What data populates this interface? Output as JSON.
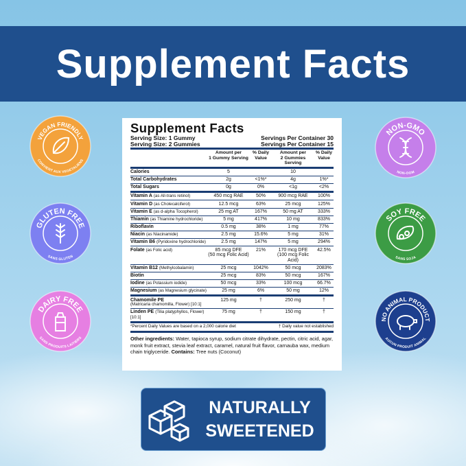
{
  "banner": {
    "title": "Supplement Facts"
  },
  "label": {
    "title": "Supplement Facts",
    "serving_sizes": [
      "Serving Size: 1 Gummy",
      "Serving Size: 2 Gummies"
    ],
    "servings_per_container": [
      "Servings Per Container 30",
      "Servings Per Container 15"
    ],
    "headers": [
      [
        "Amount per",
        "1 Gummy Serving"
      ],
      [
        "% Daily",
        "Value"
      ],
      [
        "Amount per",
        "2 Gummies Serving"
      ],
      [
        "% Daily",
        "Value"
      ]
    ],
    "sections": [
      [
        {
          "name": "Calories",
          "amt1": "5",
          "amt2": "10"
        },
        {
          "name": "Total Carbohydrates",
          "amt1": "2g",
          "dv1": "<1%*",
          "amt2": "4g",
          "dv2": "1%*"
        },
        {
          "name": "Total Sugars",
          "amt1": "0g",
          "dv1": "0%",
          "amt2": "<1g",
          "dv2": "<2%"
        }
      ],
      [
        {
          "name": "Vitamin A",
          "note": "(as All-trans retinol)",
          "amt1": "450 mcg RAE",
          "dv1": "50%",
          "amt2": "900 mcg RAE",
          "dv2": "100%"
        },
        {
          "name": "Vitamin D",
          "note": "(as Cholecalciferol)",
          "amt1": "12.5 mcg",
          "dv1": "63%",
          "amt2": "25 mcg",
          "dv2": "125%"
        },
        {
          "name": "Vitamin E",
          "note": "(as d-alpha Tocopherol)",
          "amt1": "25 mg AT",
          "dv1": "167%",
          "amt2": "50 mg AT",
          "dv2": "333%"
        },
        {
          "name": "Thiamin",
          "note": "(as Thiamine hydrochloride)",
          "amt1": "5 mg",
          "dv1": "417%",
          "amt2": "10 mg",
          "dv2": "833%"
        },
        {
          "name": "Riboflavin",
          "amt1": "0.5 mg",
          "dv1": "38%",
          "amt2": "1 mg",
          "dv2": "77%"
        },
        {
          "name": "Niacin",
          "note": "(as Niacinamide)",
          "amt1": "2.5 mg",
          "dv1": "15.6%",
          "amt2": "5 mg",
          "dv2": "31%"
        },
        {
          "name": "Vitamin B6",
          "note": "(Pyridoxine hydrochloride)",
          "amt1": "2.5 mg",
          "dv1": "147%",
          "amt2": "5 mg",
          "dv2": "294%"
        },
        {
          "name": "Folate",
          "note": "(as Folic acid)",
          "amt1": "85 mcg DFE",
          "amt1_sub": "(50 mcg Folic Acid)",
          "dv1": "21%",
          "amt2": "170 mcg DFE",
          "amt2_sub": "(100 mcg Folic Acid)",
          "dv2": "42.5%"
        },
        {
          "name": "Vitamin B12",
          "note": "(Methylcobalamin)",
          "amt1": "25 mcg",
          "dv1": "1042%",
          "amt2": "50 mcg",
          "dv2": "2083%"
        },
        {
          "name": "Biotin",
          "amt1": "25 mcg",
          "dv1": "83%",
          "amt2": "50 mcg",
          "dv2": "167%"
        },
        {
          "name": "Iodine",
          "note": "(as Potassium iodide)",
          "amt1": "50 mcg",
          "dv1": "33%",
          "amt2": "100 mcg",
          "dv2": "66.7%"
        },
        {
          "name": "Magnesium",
          "note": "(as Magnesium glycinate)",
          "amt1": "25 mg",
          "dv1": "6%",
          "amt2": "50 mg",
          "dv2": "12%"
        }
      ],
      [
        {
          "name": "Chamomile PE",
          "note_line2": "(Matricaria chamomilla, Flower) [10:1]",
          "amt1": "125 mg",
          "dv1": "†",
          "amt2": "250 mg",
          "dv2": "†"
        },
        {
          "name": "Linden PE",
          "note": "(Tilia platyphyllos, Flower) [10:1]",
          "amt1": "75 mg",
          "dv1": "†",
          "amt2": "150 mg",
          "dv2": "†"
        }
      ]
    ],
    "footnotes": [
      "*Percent Daily Values are based on a 2,000 calorie diet",
      "† Daily value not established"
    ],
    "other_ingredients_label": "Other ingredients:",
    "other_ingredients": "Water, tapioca syrup, sodium citrate dihydrate, pectin, citric acid, agar, monk fruit extract, stevia leaf extract, caramel, natural fruit flavor, carnauba wax, medium chain triglyceride.",
    "contains_label": "Contains:",
    "contains": "Tree nuts (Coconut)"
  },
  "badges_left": [
    {
      "name": "VEGAN FRIENDLY",
      "sub": "CONVIENT AUX VEGETALIENS",
      "color": "#f3a23c"
    },
    {
      "name": "GLUTEN FREE",
      "sub": "SANS GLUTEN",
      "color": "#7d80f1"
    },
    {
      "name": "DAIRY FREE",
      "sub": "SANS PRODUITS LAITIERS",
      "color": "#e67fe2"
    }
  ],
  "badges_right": [
    {
      "name": "NON-GMO",
      "sub": "NON-OGM",
      "color": "#c57fea"
    },
    {
      "name": "SOY FREE",
      "sub": "SANS SOJA",
      "color": "#3c9c45"
    },
    {
      "name": "NO ANIMAL PRODUCT",
      "sub": "AUCUN PRODUIT ANIMAL",
      "color": "#1d3f8e"
    }
  ],
  "bottom_badge": {
    "lines": [
      "NATURALLY",
      "SWEETENED"
    ]
  }
}
